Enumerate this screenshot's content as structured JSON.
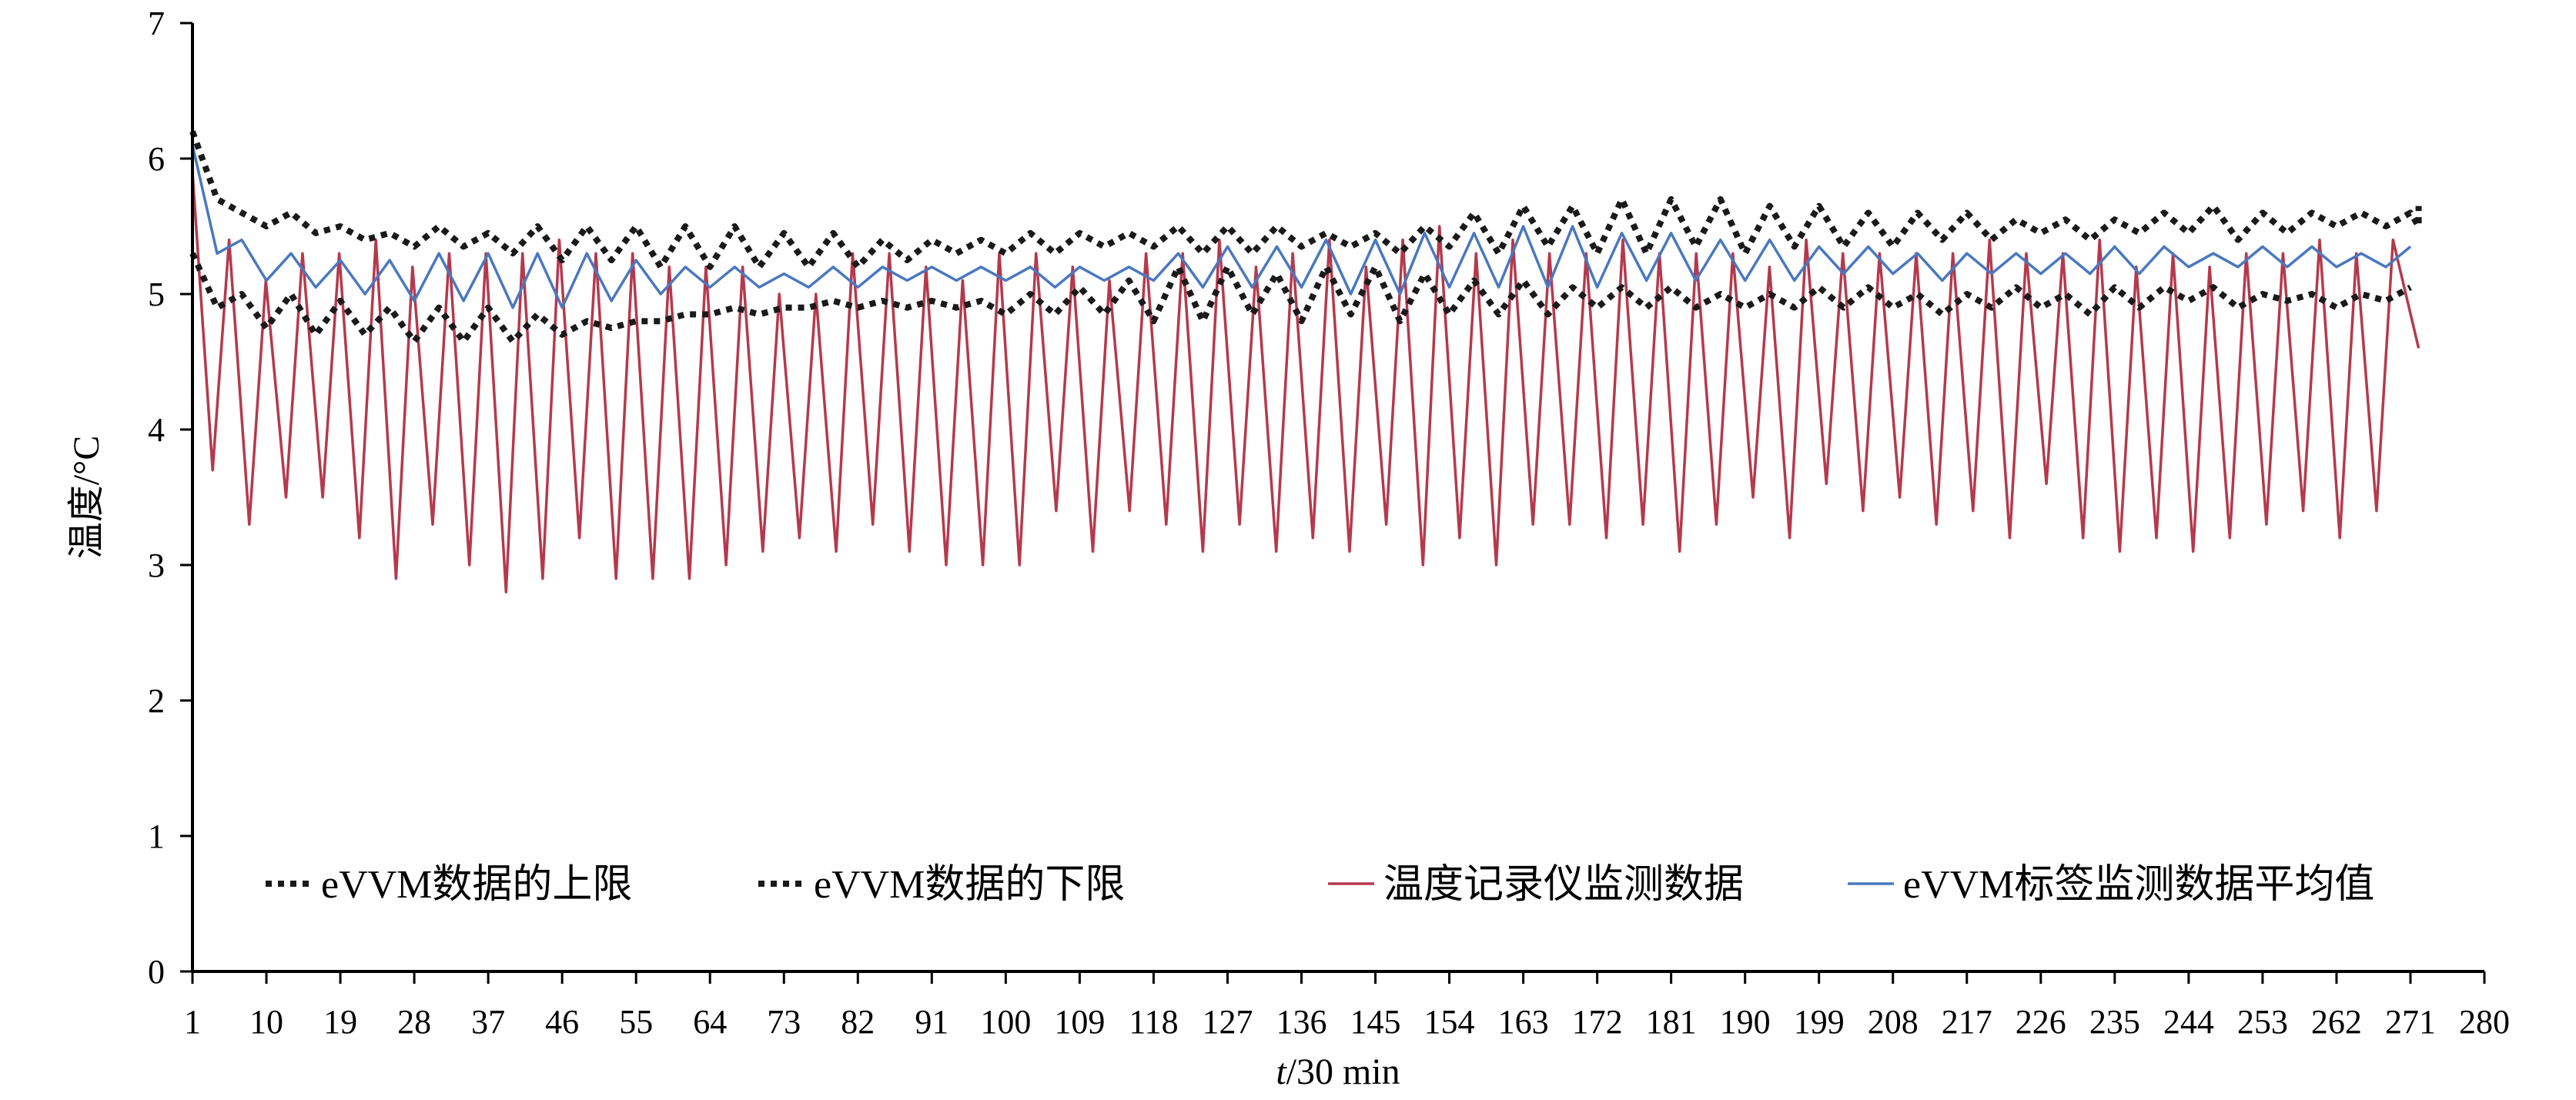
{
  "chart_data": {
    "type": "line",
    "title": "",
    "xlabel_italic": "t",
    "xlabel_rest": "/30 min",
    "ylabel": "温度/°C",
    "xlim": [
      1,
      280
    ],
    "ylim": [
      0,
      7
    ],
    "x_ticks": [
      1,
      10,
      19,
      28,
      37,
      46,
      55,
      64,
      73,
      82,
      91,
      100,
      109,
      118,
      127,
      136,
      145,
      154,
      163,
      172,
      181,
      190,
      199,
      208,
      217,
      226,
      235,
      244,
      253,
      262,
      271,
      280
    ],
    "y_ticks": [
      0,
      1,
      2,
      3,
      4,
      5,
      6,
      7
    ],
    "x_start": 1,
    "x_end": 272,
    "legend_position": "bottom-inside",
    "series": [
      {
        "name": "eVVM数据的上限",
        "style": "dotted",
        "color": "#1a1a1a",
        "start": 6.2,
        "y": [
          6.2,
          5.7,
          5.6,
          5.5,
          5.6,
          5.45,
          5.5,
          5.4,
          5.45,
          5.35,
          5.5,
          5.35,
          5.45,
          5.3,
          5.5,
          5.25,
          5.5,
          5.25,
          5.5,
          5.2,
          5.5,
          5.2,
          5.5,
          5.2,
          5.45,
          5.2,
          5.45,
          5.2,
          5.4,
          5.25,
          5.4,
          5.3,
          5.4,
          5.3,
          5.45,
          5.3,
          5.45,
          5.35,
          5.45,
          5.35,
          5.5,
          5.3,
          5.5,
          5.3,
          5.5,
          5.35,
          5.45,
          5.35,
          5.45,
          5.3,
          5.5,
          5.35,
          5.6,
          5.3,
          5.65,
          5.35,
          5.65,
          5.3,
          5.7,
          5.3,
          5.7,
          5.35,
          5.7,
          5.3,
          5.65,
          5.35,
          5.65,
          5.35,
          5.6,
          5.35,
          5.6,
          5.4,
          5.6,
          5.4,
          5.55,
          5.45,
          5.55,
          5.4,
          5.55,
          5.45,
          5.6,
          5.45,
          5.65,
          5.4,
          5.6,
          5.45,
          5.6,
          5.5,
          5.6,
          5.5,
          5.6,
          5.5,
          5.65
        ],
        "step": 3
      },
      {
        "name": "eVVM数据的下限",
        "style": "dotted",
        "color": "#1a1a1a",
        "y": [
          5.3,
          4.9,
          5.0,
          4.75,
          5.0,
          4.7,
          4.95,
          4.7,
          4.9,
          4.65,
          4.9,
          4.65,
          4.9,
          4.65,
          4.85,
          4.7,
          4.8,
          4.75,
          4.8,
          4.8,
          4.85,
          4.85,
          4.9,
          4.85,
          4.9,
          4.9,
          4.95,
          4.9,
          4.95,
          4.9,
          4.95,
          4.9,
          4.95,
          4.85,
          5.0,
          4.85,
          5.05,
          4.85,
          5.1,
          4.8,
          5.2,
          4.8,
          5.2,
          4.85,
          5.15,
          4.8,
          5.2,
          4.85,
          5.2,
          4.8,
          5.15,
          4.85,
          5.1,
          4.85,
          5.1,
          4.85,
          5.05,
          4.9,
          5.05,
          4.9,
          5.05,
          4.9,
          5.0,
          4.9,
          5.0,
          4.9,
          5.05,
          4.9,
          5.05,
          4.9,
          5.0,
          4.85,
          5.0,
          4.9,
          5.05,
          4.9,
          5.0,
          4.85,
          5.05,
          4.9,
          5.05,
          4.95,
          5.05,
          4.9,
          5.0,
          4.95,
          5.0,
          4.9,
          5.0,
          4.95,
          5.05
        ],
        "step": 3
      },
      {
        "name": "温度记录仪监测数据",
        "style": "solid",
        "color": "#b5394d",
        "peaks": [
          5.9,
          5.4,
          5.1,
          5.3,
          5.3,
          5.4,
          5.2,
          5.3,
          5.3,
          5.3,
          5.4,
          5.3,
          5.3,
          5.2,
          5.2,
          5.2,
          5.0,
          5.0,
          5.3,
          5.3,
          5.2,
          5.1,
          5.3,
          5.3,
          5.2,
          5.1,
          5.3,
          5.3,
          5.4,
          5.2,
          5.3,
          5.4,
          5.2,
          5.4,
          5.5,
          5.3,
          5.4,
          5.3,
          5.3,
          5.4,
          5.3,
          5.3,
          5.3,
          5.2,
          5.4,
          5.3,
          5.3,
          5.3,
          5.3,
          5.4,
          5.3,
          5.3,
          5.4,
          5.2,
          5.3,
          5.2,
          5.3,
          5.3,
          5.4,
          5.3,
          5.4
        ],
        "troughs": [
          3.7,
          3.3,
          3.5,
          3.5,
          3.2,
          2.9,
          3.3,
          3.0,
          2.8,
          2.9,
          3.2,
          2.9,
          2.9,
          2.9,
          3.0,
          3.1,
          3.2,
          3.1,
          3.3,
          3.1,
          3.0,
          3.0,
          3.0,
          3.4,
          3.1,
          3.4,
          3.3,
          3.1,
          3.3,
          3.1,
          3.2,
          3.1,
          3.3,
          3.0,
          3.2,
          3.0,
          3.3,
          3.3,
          3.2,
          3.3,
          3.1,
          3.3,
          3.5,
          3.2,
          3.6,
          3.4,
          3.5,
          3.3,
          3.4,
          3.2,
          3.6,
          3.2,
          3.1,
          3.2,
          3.1,
          3.2,
          3.3,
          3.4,
          3.2,
          3.4
        ],
        "final": 4.6
      },
      {
        "name": "eVVM标签监测数据平均值",
        "style": "solid",
        "color": "#4a78c0",
        "y": [
          6.1,
          5.3,
          5.4,
          5.1,
          5.3,
          5.05,
          5.25,
          5.0,
          5.25,
          4.95,
          5.3,
          4.95,
          5.3,
          4.9,
          5.3,
          4.9,
          5.3,
          4.95,
          5.25,
          5.0,
          5.2,
          5.05,
          5.2,
          5.05,
          5.15,
          5.05,
          5.2,
          5.05,
          5.2,
          5.1,
          5.2,
          5.1,
          5.2,
          5.1,
          5.2,
          5.05,
          5.2,
          5.1,
          5.2,
          5.1,
          5.3,
          5.05,
          5.35,
          5.05,
          5.35,
          5.05,
          5.4,
          5.0,
          5.4,
          5.0,
          5.45,
          5.05,
          5.45,
          5.05,
          5.5,
          5.05,
          5.5,
          5.05,
          5.45,
          5.1,
          5.45,
          5.1,
          5.4,
          5.1,
          5.4,
          5.1,
          5.35,
          5.15,
          5.35,
          5.15,
          5.3,
          5.1,
          5.3,
          5.15,
          5.3,
          5.15,
          5.3,
          5.15,
          5.35,
          5.15,
          5.35,
          5.2,
          5.3,
          5.2,
          5.35,
          5.2,
          5.35,
          5.2,
          5.3,
          5.2,
          5.35
        ],
        "step": 3
      }
    ]
  }
}
